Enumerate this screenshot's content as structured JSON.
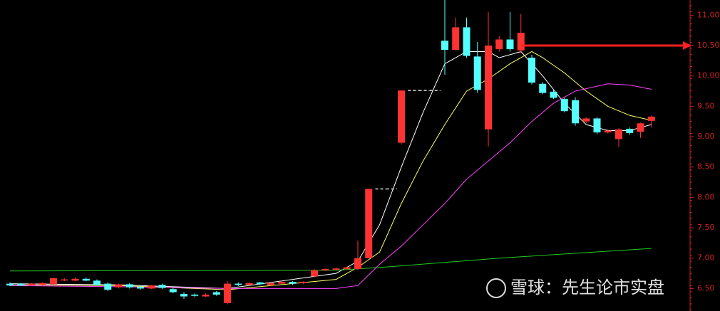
{
  "chart_data": {
    "type": "candlestick",
    "up_color": "#ff3232",
    "down_color": "#54ffff",
    "open": [
      6.58,
      6.58,
      6.55,
      6.56,
      6.57,
      6.64,
      6.63,
      6.66,
      6.63,
      6.58,
      6.52,
      6.57,
      6.53,
      6.5,
      6.56,
      6.49,
      6.41,
      6.4,
      6.37,
      6.44,
      6.26,
      6.58,
      6.56,
      6.6,
      6.55,
      6.58,
      6.61,
      6.59,
      6.7,
      6.8,
      6.81,
      6.82,
      6.82,
      7.0,
      8.14,
      8.14,
      8.9,
      9.76,
      9.76,
      9.76,
      10.58,
      10.43,
      10.8,
      10.32,
      9.12,
      10.44,
      10.6,
      10.42,
      10.3,
      9.87,
      9.74,
      9.62,
      9.6,
      9.25,
      9.3,
      9.07,
      8.96,
      9.13,
      9.08,
      9.26
    ],
    "high": [
      6.6,
      6.59,
      6.59,
      6.6,
      6.68,
      6.67,
      6.68,
      6.68,
      6.65,
      6.6,
      6.58,
      6.59,
      6.55,
      6.56,
      6.58,
      6.51,
      6.44,
      6.42,
      6.42,
      6.46,
      6.62,
      6.6,
      6.6,
      6.61,
      6.6,
      6.63,
      6.62,
      6.62,
      6.82,
      6.83,
      6.84,
      6.86,
      7.29,
      8.14,
      8.14,
      8.14,
      9.76,
      9.76,
      9.76,
      9.76,
      11.25,
      10.96,
      10.96,
      10.56,
      11.05,
      10.66,
      11.05,
      11.02,
      10.35,
      9.9,
      9.78,
      9.64,
      9.65,
      9.32,
      9.32,
      9.12,
      9.14,
      9.15,
      9.23,
      9.35
    ],
    "low": [
      6.54,
      6.54,
      6.54,
      6.55,
      6.56,
      6.62,
      6.62,
      6.62,
      6.55,
      6.46,
      6.5,
      6.5,
      6.48,
      6.49,
      6.49,
      6.42,
      6.33,
      6.36,
      6.36,
      6.38,
      6.24,
      6.54,
      6.55,
      6.55,
      6.54,
      6.57,
      6.56,
      6.57,
      6.68,
      6.79,
      6.8,
      6.81,
      6.8,
      7.0,
      8.14,
      8.14,
      8.87,
      9.76,
      9.76,
      9.76,
      10.02,
      10.42,
      10.3,
      9.72,
      8.84,
      10.4,
      10.4,
      10.38,
      9.86,
      9.7,
      9.62,
      9.4,
      9.18,
      9.22,
      9.04,
      9.05,
      8.83,
      9.03,
      8.98,
      9.15
    ],
    "close": [
      6.55,
      6.55,
      6.58,
      6.59,
      6.67,
      6.65,
      6.66,
      6.63,
      6.56,
      6.48,
      6.57,
      6.52,
      6.5,
      6.55,
      6.51,
      6.44,
      6.37,
      6.38,
      6.4,
      6.4,
      6.58,
      6.56,
      6.59,
      6.57,
      6.59,
      6.61,
      6.58,
      6.61,
      6.8,
      6.82,
      6.83,
      6.85,
      7.0,
      8.14,
      8.14,
      8.14,
      9.76,
      9.76,
      9.76,
      9.76,
      10.43,
      10.8,
      10.33,
      9.77,
      10.5,
      10.6,
      10.44,
      10.71,
      9.89,
      9.72,
      9.64,
      9.42,
      9.22,
      9.3,
      9.07,
      9.1,
      9.12,
      9.06,
      9.22,
      9.33
    ],
    "lines": [
      {
        "color": "#ffffff",
        "x": [
          0,
          10,
          20,
          30,
          32,
          33,
          34,
          36,
          38,
          40,
          42,
          44,
          45,
          47,
          49,
          51,
          53,
          55,
          57,
          59
        ],
        "values": [
          6.58,
          6.56,
          6.5,
          6.75,
          6.95,
          7.25,
          7.55,
          8.5,
          9.4,
          10.2,
          10.4,
          10.4,
          10.3,
          10.4,
          10.0,
          9.55,
          9.2,
          9.1,
          9.1,
          9.2
        ]
      },
      {
        "color": "#ffff66",
        "x": [
          0,
          10,
          20,
          30,
          32,
          34,
          36,
          38,
          40,
          42,
          44,
          46,
          48,
          49,
          51,
          53,
          55,
          57,
          59
        ],
        "values": [
          6.56,
          6.55,
          6.48,
          6.65,
          6.85,
          7.1,
          7.9,
          8.6,
          9.2,
          9.75,
          9.95,
          10.2,
          10.4,
          10.3,
          10.05,
          9.75,
          9.5,
          9.35,
          9.27
        ]
      },
      {
        "color": "#ff44ff",
        "x": [
          0,
          10,
          20,
          30,
          32,
          34,
          36,
          38,
          40,
          42,
          44,
          46,
          48,
          50,
          52,
          55,
          57,
          59
        ],
        "values": [
          6.55,
          6.53,
          6.5,
          6.5,
          6.55,
          6.9,
          7.2,
          7.55,
          7.9,
          8.3,
          8.6,
          8.9,
          9.25,
          9.55,
          9.75,
          9.87,
          9.85,
          9.78
        ]
      },
      {
        "color": "#22cc22",
        "x": [
          0,
          30,
          35,
          45,
          59
        ],
        "values": [
          6.79,
          6.8,
          6.86,
          7.0,
          7.16
        ]
      }
    ],
    "ylim": [
      6.13,
      11.25
    ],
    "yticks": [
      {
        "value": 11,
        "label": "11.00"
      },
      {
        "value": 10.5,
        "label": "10.50"
      },
      {
        "value": 10,
        "label": "10.00"
      },
      {
        "value": 9.5,
        "label": "9.50"
      },
      {
        "value": 9,
        "label": "9.00"
      },
      {
        "value": 8.5,
        "label": "8.50"
      },
      {
        "value": 8,
        "label": "8.00"
      },
      {
        "value": 7.5,
        "label": "7.50"
      },
      {
        "value": 7,
        "label": "7.00"
      },
      {
        "value": 6.5,
        "label": "6.50"
      }
    ],
    "annotation": {
      "value": 10.5,
      "color": "#ff2020"
    }
  },
  "watermark": "雪球：先生论市实盘"
}
